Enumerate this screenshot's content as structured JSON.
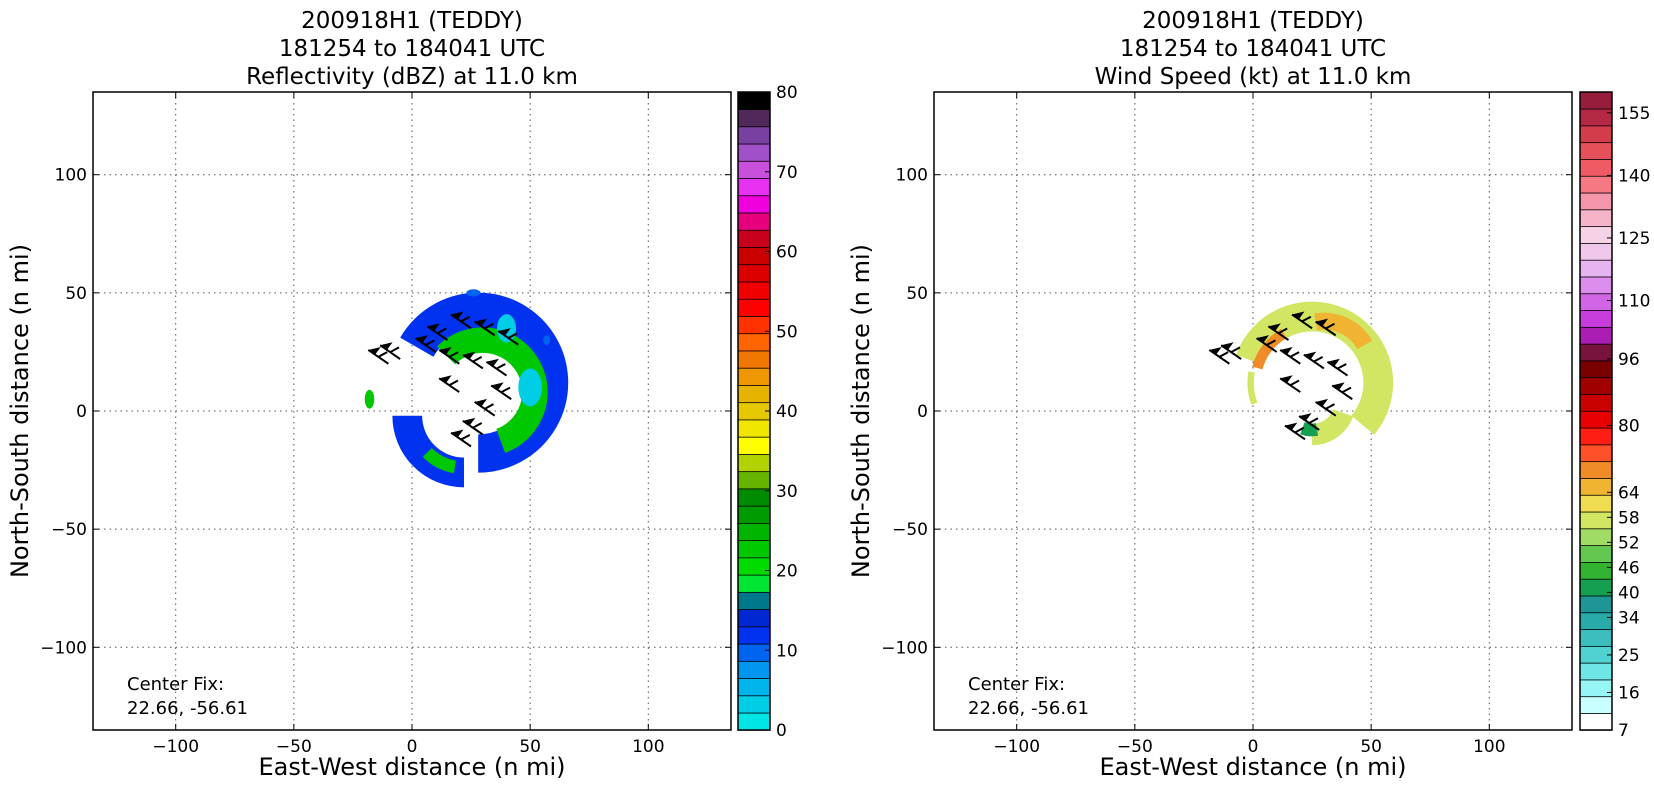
{
  "chart_data": [
    {
      "type": "heatmap",
      "title_lines": [
        "200918H1 (TEDDY)",
        "181254 to 184041 UTC",
        "Reflectivity (dBZ) at 11.0 km"
      ],
      "xlabel": "East-West distance (n mi)",
      "ylabel": "North-South distance (n mi)",
      "xlim": [
        -135,
        135
      ],
      "ylim": [
        -135,
        135
      ],
      "xticks": [
        -100,
        -50,
        0,
        50,
        100
      ],
      "yticks": [
        -100,
        -50,
        0,
        50,
        100
      ],
      "xtick_labels": [
        "−100",
        "−50",
        "0",
        "50",
        "100"
      ],
      "ytick_labels": [
        "−100",
        "−50",
        "0",
        "50",
        "100"
      ],
      "grid": true,
      "annotation_lines": [
        "Center Fix:",
        "22.66, -56.61"
      ],
      "colorbar": {
        "min": 0,
        "max": 80,
        "tick_values": [
          0,
          10,
          20,
          30,
          40,
          50,
          60,
          70,
          80
        ],
        "tick_labels": [
          "0",
          "10",
          "20",
          "30",
          "40",
          "50",
          "60",
          "70",
          "80"
        ],
        "colors": [
          "#00e6e6",
          "#00cde6",
          "#00b4ec",
          "#0096f0",
          "#0064f0",
          "#0032f0",
          "#0028d2",
          "#00788c",
          "#00e632",
          "#00dc00",
          "#00c800",
          "#00b400",
          "#009b00",
          "#008c00",
          "#64b400",
          "#b4d200",
          "#ffff00",
          "#f0e600",
          "#e6c800",
          "#e6b400",
          "#f09600",
          "#f07800",
          "#ff6400",
          "#ff3200",
          "#ff0000",
          "#f00000",
          "#dc0000",
          "#c80000",
          "#c8001e",
          "#e6007c",
          "#f000dc",
          "#e632f0",
          "#c850dc",
          "#a050c8",
          "#7840a0",
          "#50285a",
          "#000000"
        ]
      },
      "wind_speed_range": [
        0,
        0
      ],
      "series": [
        {
          "type": "reflectivity-arc",
          "center": [
            28,
            12
          ],
          "radius": 30,
          "angle_start": -90,
          "angle_end": 150,
          "width": 18,
          "value": 12
        },
        {
          "type": "reflectivity-arc",
          "center": [
            30,
            8
          ],
          "radius": 22,
          "angle_start": -70,
          "angle_end": 135,
          "width": 12,
          "value": 22
        },
        {
          "type": "reflectivity-arc",
          "center": [
            22,
            -2
          ],
          "radius": 24,
          "angle_start": 180,
          "angle_end": 270,
          "width": 14,
          "value": 12
        },
        {
          "type": "reflectivity-arc",
          "center": [
            22,
            -2
          ],
          "radius": 22,
          "angle_start": 225,
          "angle_end": 260,
          "width": 6,
          "value": 22
        },
        {
          "type": "reflectivity-blob",
          "center": [
            -18,
            5
          ],
          "rx": 2,
          "ry": 4,
          "value": 22
        },
        {
          "type": "reflectivity-blob",
          "center": [
            26,
            50
          ],
          "rx": 3,
          "ry": 1.5,
          "value": 10
        },
        {
          "type": "reflectivity-blob",
          "center": [
            57,
            30
          ],
          "rx": 1.5,
          "ry": 2,
          "value": 10
        },
        {
          "type": "reflectivity-blob",
          "center": [
            50,
            10
          ],
          "rx": 5,
          "ry": 8,
          "value": 4
        },
        {
          "type": "reflectivity-blob",
          "center": [
            40,
            35
          ],
          "rx": 4,
          "ry": 6,
          "value": 4
        }
      ],
      "barbs": [
        [
          15,
          30
        ],
        [
          25,
          35
        ],
        [
          35,
          32
        ],
        [
          45,
          28
        ],
        [
          -5,
          22
        ],
        [
          10,
          25
        ],
        [
          20,
          20
        ],
        [
          30,
          18
        ],
        [
          40,
          15
        ],
        [
          42,
          5
        ],
        [
          35,
          -2
        ],
        [
          30,
          -10
        ],
        [
          25,
          -15
        ],
        [
          -10,
          20
        ],
        [
          20,
          8
        ]
      ]
    },
    {
      "type": "heatmap",
      "title_lines": [
        "200918H1 (TEDDY)",
        "181254 to 184041 UTC",
        "Wind Speed (kt) at 11.0 km"
      ],
      "xlabel": "East-West distance (n mi)",
      "ylabel": "North-South distance (n mi)",
      "xlim": [
        -135,
        135
      ],
      "ylim": [
        -135,
        135
      ],
      "xticks": [
        -100,
        -50,
        0,
        50,
        100
      ],
      "yticks": [
        -100,
        -50,
        0,
        50,
        100
      ],
      "xtick_labels": [
        "−100",
        "−50",
        "0",
        "50",
        "100"
      ],
      "ytick_labels": [
        "−100",
        "−50",
        "0",
        "50",
        "100"
      ],
      "grid": true,
      "annotation_lines": [
        "Center Fix:",
        "22.66, -56.61"
      ],
      "colorbar": {
        "min": 7,
        "max": 160,
        "tick_values": [
          7,
          16,
          25,
          34,
          40,
          46,
          52,
          58,
          64,
          80,
          96,
          110,
          125,
          140,
          155
        ],
        "tick_labels": [
          "7",
          "16",
          "25",
          "34",
          "40",
          "46",
          "52",
          "58",
          "64",
          "80",
          "96",
          "110",
          "125",
          "140",
          "155"
        ],
        "colors": [
          "#ffffff",
          "#c8ffff",
          "#96f5f5",
          "#6ee6e6",
          "#50d2d2",
          "#3cbebe",
          "#28aaaa",
          "#1e9696",
          "#14a050",
          "#32b432",
          "#64c850",
          "#a0dc64",
          "#d2e664",
          "#f0dc50",
          "#f0b432",
          "#f08c28",
          "#ff5028",
          "#ff1e14",
          "#e60000",
          "#c80000",
          "#a00000",
          "#780000",
          "#78143c",
          "#aa1eb4",
          "#c83cdc",
          "#d264e6",
          "#dc8cec",
          "#e6b4f0",
          "#f0c8ec",
          "#f5d2e6",
          "#f5b4c8",
          "#f596aa",
          "#f57882",
          "#f05a64",
          "#e6505a",
          "#d23c4b",
          "#b42846",
          "#961e3c"
        ]
      },
      "wind_speed_range": [
        7,
        160
      ],
      "series": [
        {
          "type": "wind-arc",
          "center": [
            25,
            12
          ],
          "radius": 28,
          "angle_start": -40,
          "angle_end": 160,
          "width": 14,
          "value": 58
        },
        {
          "type": "wind-arc",
          "center": [
            25,
            12
          ],
          "radius": 24,
          "angle_start": 120,
          "angle_end": 165,
          "width": 5,
          "value": 70
        },
        {
          "type": "wind-arc",
          "center": [
            25,
            12
          ],
          "radius": 26,
          "angle_start": 170,
          "angle_end": 200,
          "width": 3,
          "value": 58
        },
        {
          "type": "wind-arc",
          "center": [
            25,
            4
          ],
          "radius": 14,
          "angle_start": -90,
          "angle_end": -20,
          "width": 10,
          "value": 58
        },
        {
          "type": "wind-arc",
          "center": [
            25,
            4
          ],
          "radius": 12,
          "angle_start": -110,
          "angle_end": -80,
          "width": 6,
          "value": 40
        },
        {
          "type": "wind-arc",
          "center": [
            30,
            18
          ],
          "radius": 20,
          "angle_start": 30,
          "angle_end": 100,
          "width": 8,
          "value": 64
        }
      ],
      "barbs": [
        [
          15,
          30
        ],
        [
          25,
          35
        ],
        [
          35,
          32
        ],
        [
          -5,
          22
        ],
        [
          10,
          25
        ],
        [
          20,
          20
        ],
        [
          30,
          18
        ],
        [
          40,
          15
        ],
        [
          42,
          5
        ],
        [
          35,
          -2
        ],
        [
          28,
          -8
        ],
        [
          22,
          -12
        ],
        [
          -10,
          20
        ],
        [
          20,
          8
        ]
      ]
    }
  ]
}
